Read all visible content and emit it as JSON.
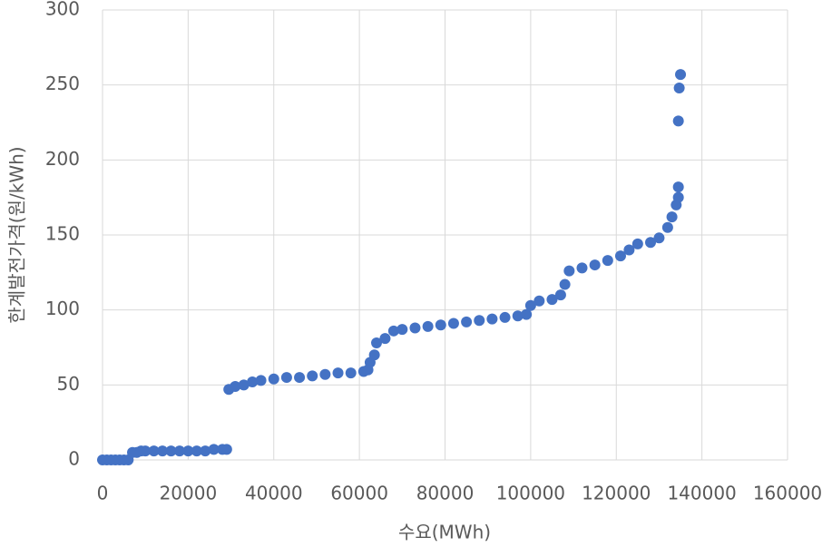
{
  "chart_data": {
    "type": "scatter",
    "x_label": "수요(MWh)",
    "y_label": "한계발전가격(원/kWh)",
    "color": "#4472c4",
    "grid": true,
    "xlim": [
      0,
      160000
    ],
    "xticks": [
      0,
      20000,
      40000,
      60000,
      80000,
      100000,
      120000,
      140000,
      160000
    ],
    "ylim": [
      0,
      300
    ],
    "yticks": [
      0,
      50,
      100,
      150,
      200,
      250,
      300
    ],
    "x": [
      0,
      1000,
      2000,
      3000,
      4000,
      5000,
      6000,
      7000,
      8000,
      9000,
      10000,
      12000,
      14000,
      16000,
      18000,
      20000,
      22000,
      24000,
      26000,
      28000,
      29000,
      29500,
      31000,
      33000,
      35000,
      37000,
      40000,
      43000,
      46000,
      49000,
      52000,
      55000,
      58000,
      61000,
      62000,
      62500,
      63500,
      64000,
      66000,
      68000,
      70000,
      73000,
      76000,
      79000,
      82000,
      85000,
      88000,
      91000,
      94000,
      97000,
      99000,
      100000,
      102000,
      105000,
      107000,
      108000,
      109000,
      112000,
      115000,
      118000,
      121000,
      123000,
      125000,
      128000,
      130000,
      132000,
      133000,
      134000,
      134500,
      134500,
      134500,
      134700,
      135000
    ],
    "values": [
      0,
      0,
      0,
      0,
      0,
      0,
      0,
      5,
      5,
      6,
      6,
      6,
      6,
      6,
      6,
      6,
      6,
      6,
      7,
      7,
      7,
      47,
      49,
      50,
      52,
      53,
      54,
      55,
      55,
      56,
      57,
      58,
      58,
      59,
      60,
      65,
      70,
      78,
      81,
      86,
      87,
      88,
      89,
      90,
      91,
      92,
      93,
      94,
      95,
      96,
      97,
      103,
      106,
      107,
      110,
      117,
      126,
      128,
      130,
      133,
      136,
      140,
      144,
      145,
      148,
      155,
      162,
      170,
      175,
      182,
      226,
      248,
      257
    ]
  }
}
